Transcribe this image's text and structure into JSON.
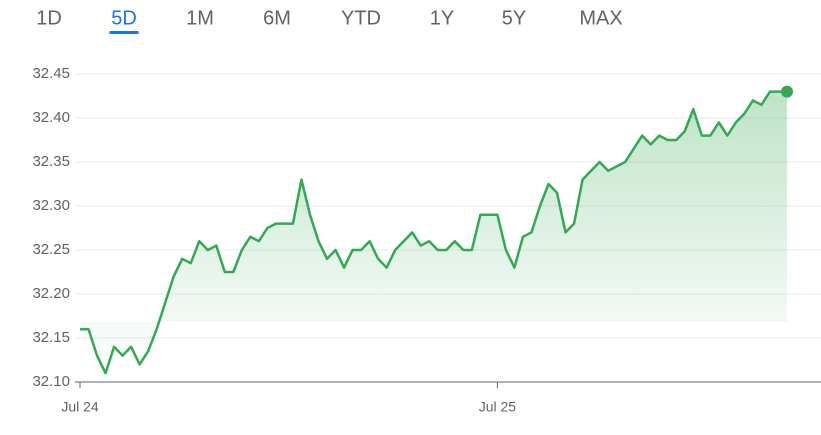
{
  "range_tabs": {
    "options": [
      "1D",
      "5D",
      "1M",
      "6M",
      "YTD",
      "1Y",
      "5Y",
      "MAX"
    ],
    "selected": 1
  },
  "chart_data": {
    "type": "line",
    "categories": [
      "Jul 24",
      null,
      null,
      null,
      null,
      null,
      null,
      null,
      null,
      null,
      null,
      null,
      null,
      null,
      null,
      null,
      null,
      null,
      null,
      null,
      null,
      null,
      null,
      null,
      null,
      null,
      null,
      null,
      null,
      null,
      null,
      null,
      null,
      null,
      null,
      null,
      null,
      null,
      null,
      null,
      null,
      null,
      null,
      null,
      null,
      null,
      null,
      null,
      null,
      "Jul 25",
      null,
      null,
      null,
      null,
      null,
      null,
      null,
      null,
      null,
      null,
      null,
      null,
      null,
      null,
      null,
      null,
      null,
      null,
      null,
      null,
      null,
      null,
      null,
      null,
      null,
      null,
      null,
      null,
      null,
      null,
      null,
      null,
      null,
      null
    ],
    "values": [
      32.16,
      32.16,
      32.13,
      32.11,
      32.14,
      32.13,
      32.14,
      32.12,
      32.135,
      32.16,
      32.19,
      32.22,
      32.24,
      32.235,
      32.26,
      32.25,
      32.255,
      32.225,
      32.225,
      32.25,
      32.265,
      32.26,
      32.275,
      32.28,
      32.28,
      32.28,
      32.33,
      32.29,
      32.26,
      32.24,
      32.25,
      32.23,
      32.25,
      32.25,
      32.26,
      32.24,
      32.23,
      32.25,
      32.26,
      32.27,
      32.255,
      32.26,
      32.25,
      32.25,
      32.26,
      32.25,
      32.25,
      32.29,
      32.29,
      32.29,
      32.25,
      32.23,
      32.265,
      32.27,
      32.3,
      32.325,
      32.315,
      32.27,
      32.28,
      32.33,
      32.34,
      32.35,
      32.34,
      32.345,
      32.35,
      32.365,
      32.38,
      32.37,
      32.38,
      32.375,
      32.375,
      32.385,
      32.41,
      32.38,
      32.38,
      32.395,
      32.38,
      32.395,
      32.405,
      32.42,
      32.415,
      32.43,
      32.43,
      32.43
    ],
    "color": "#34a853",
    "ylim": [
      32.1,
      32.45
    ],
    "yticks": [
      {
        "value": 32.1,
        "label": "32.10"
      },
      32.15,
      {
        "value": 32.2,
        "label": "32.20"
      },
      32.25,
      {
        "value": 32.3,
        "label": "32.30"
      },
      32.35,
      {
        "value": 32.4,
        "label": "32.40"
      },
      32.45
    ],
    "grid": true
  }
}
